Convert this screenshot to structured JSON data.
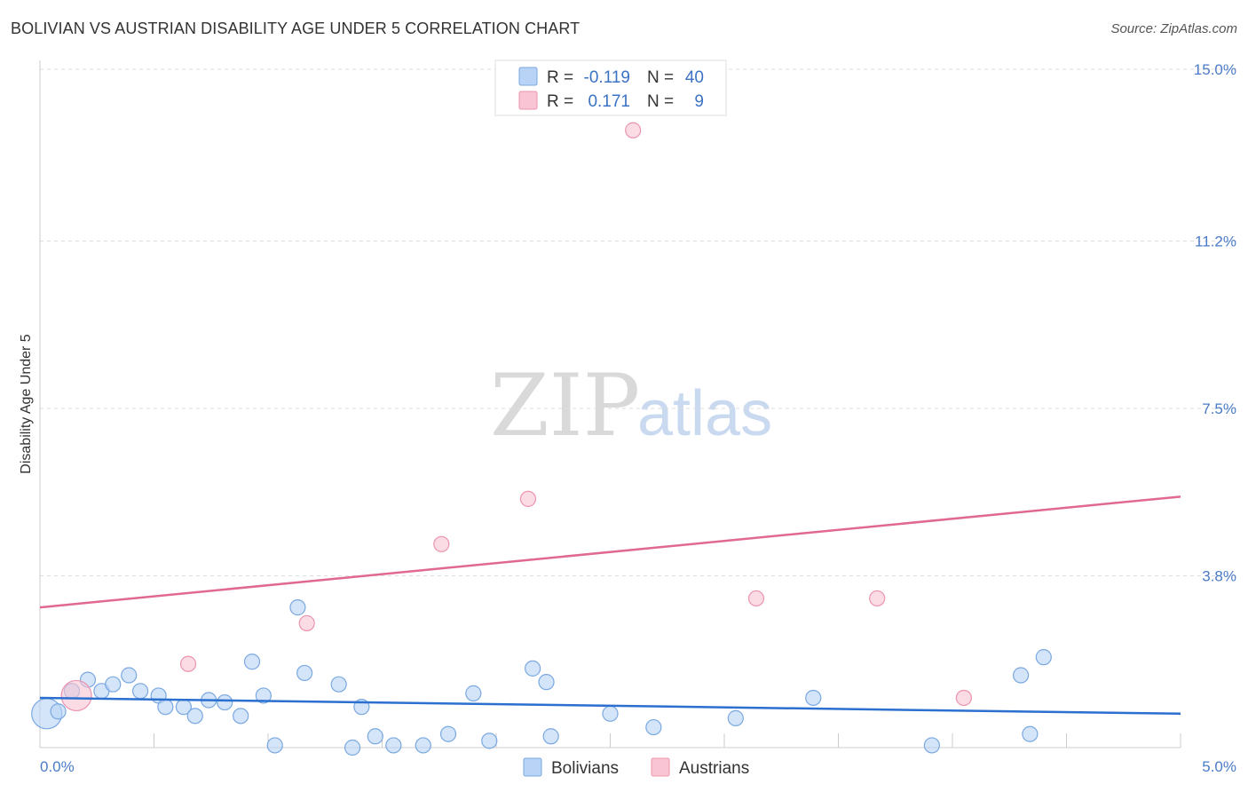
{
  "title": "BOLIVIAN VS AUSTRIAN DISABILITY AGE UNDER 5 CORRELATION CHART",
  "source": "Source: ZipAtlas.com",
  "watermark": {
    "part1": "ZIP",
    "part2": "atlas"
  },
  "colors": {
    "bolivians_fill": "#b8d3f5",
    "bolivians_stroke": "#7aa8e0",
    "bolivians_line": "#2b6fcf",
    "austrians_fill": "#f9c4d3",
    "austrians_stroke": "#ec93ae",
    "austrians_line": "#e0698f",
    "grid": "#dddddd",
    "axis_text": "#4a7bc8"
  },
  "legend": {
    "rows": [
      {
        "r_label": "R = ",
        "r_value": "-0.119",
        "n_label": "N = ",
        "n_value": "40"
      },
      {
        "r_label": "R = ",
        "r_value": "0.171",
        "n_label": "N = ",
        "n_value": "9"
      }
    ]
  },
  "chart_data": {
    "type": "scatter",
    "title": "BOLIVIAN VS AUSTRIAN DISABILITY AGE UNDER 5 CORRELATION CHART",
    "xlabel": "",
    "ylabel": "Disability Age Under 5",
    "xlim": [
      0,
      5
    ],
    "ylim": [
      0,
      15
    ],
    "x_tick_labels": [
      "0.0%",
      "5.0%"
    ],
    "y_ticks": [
      3.8,
      7.5,
      11.2,
      15.0
    ],
    "y_tick_labels": [
      "3.8%",
      "7.5%",
      "11.2%",
      "15.0%"
    ],
    "series": [
      {
        "name": "Bolivians",
        "r": -0.119,
        "n": 40,
        "trend": {
          "x": [
            0,
            5
          ],
          "y": [
            1.1,
            0.75
          ]
        },
        "points": [
          {
            "x": 0.03,
            "y": 0.75,
            "big": true
          },
          {
            "x": 0.08,
            "y": 0.8
          },
          {
            "x": 0.14,
            "y": 1.25
          },
          {
            "x": 0.21,
            "y": 1.5
          },
          {
            "x": 0.27,
            "y": 1.25
          },
          {
            "x": 0.32,
            "y": 1.4
          },
          {
            "x": 0.39,
            "y": 1.6
          },
          {
            "x": 0.44,
            "y": 1.25
          },
          {
            "x": 0.52,
            "y": 1.15
          },
          {
            "x": 0.55,
            "y": 0.9
          },
          {
            "x": 0.63,
            "y": 0.9
          },
          {
            "x": 0.68,
            "y": 0.7
          },
          {
            "x": 0.74,
            "y": 1.05
          },
          {
            "x": 0.81,
            "y": 1.0
          },
          {
            "x": 0.88,
            "y": 0.7
          },
          {
            "x": 0.93,
            "y": 1.9
          },
          {
            "x": 0.98,
            "y": 1.15
          },
          {
            "x": 1.03,
            "y": 0.05
          },
          {
            "x": 1.13,
            "y": 3.1
          },
          {
            "x": 1.16,
            "y": 1.65
          },
          {
            "x": 1.31,
            "y": 1.4
          },
          {
            "x": 1.37,
            "y": 0.0
          },
          {
            "x": 1.41,
            "y": 0.9
          },
          {
            "x": 1.47,
            "y": 0.25
          },
          {
            "x": 1.55,
            "y": 0.05
          },
          {
            "x": 1.68,
            "y": 0.05
          },
          {
            "x": 1.79,
            "y": 0.3
          },
          {
            "x": 1.9,
            "y": 1.2
          },
          {
            "x": 1.97,
            "y": 0.15
          },
          {
            "x": 2.16,
            "y": 1.75
          },
          {
            "x": 2.22,
            "y": 1.45
          },
          {
            "x": 2.24,
            "y": 0.25
          },
          {
            "x": 2.5,
            "y": 0.75
          },
          {
            "x": 2.69,
            "y": 0.45
          },
          {
            "x": 3.05,
            "y": 0.65
          },
          {
            "x": 3.39,
            "y": 1.1
          },
          {
            "x": 3.91,
            "y": 0.05
          },
          {
            "x": 4.3,
            "y": 1.6
          },
          {
            "x": 4.34,
            "y": 0.3
          },
          {
            "x": 4.4,
            "y": 2.0
          }
        ]
      },
      {
        "name": "Austrians",
        "r": 0.171,
        "n": 9,
        "trend": {
          "x": [
            0,
            5
          ],
          "y": [
            3.1,
            5.55
          ]
        },
        "points": [
          {
            "x": 0.16,
            "y": 1.15,
            "big": true
          },
          {
            "x": 0.65,
            "y": 1.85
          },
          {
            "x": 1.17,
            "y": 2.75
          },
          {
            "x": 1.76,
            "y": 4.5
          },
          {
            "x": 2.14,
            "y": 5.5
          },
          {
            "x": 2.6,
            "y": 13.65
          },
          {
            "x": 3.14,
            "y": 3.3
          },
          {
            "x": 3.67,
            "y": 3.3
          },
          {
            "x": 4.05,
            "y": 1.1
          }
        ]
      }
    ],
    "legend_entries": [
      "Bolivians",
      "Austrians"
    ]
  }
}
